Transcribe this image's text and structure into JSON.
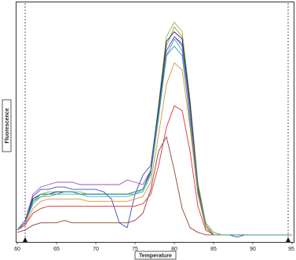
{
  "chart_data": {
    "type": "line",
    "x_label": "Temperature",
    "y_label": "Fluorescence",
    "xlim": [
      60,
      95
    ],
    "ylim": [
      0,
      100
    ],
    "xticks": [
      60,
      65,
      70,
      75,
      80,
      85,
      90,
      95
    ],
    "markers": [
      61,
      94.5
    ],
    "x": [
      60,
      61,
      62,
      63,
      64,
      65,
      66,
      67,
      68,
      69,
      70,
      71,
      72,
      73,
      74,
      75,
      76,
      77,
      78,
      79,
      80,
      81,
      82,
      83,
      84,
      85,
      86,
      87,
      88,
      89,
      90,
      91,
      92,
      93,
      94,
      95
    ],
    "series": [
      {
        "color": "#7cc444",
        "values": [
          5,
          8,
          18,
          20,
          21,
          21,
          21,
          21,
          21,
          20,
          20,
          20,
          20,
          20,
          20,
          21,
          22,
          30,
          58,
          86,
          92,
          88,
          60,
          25,
          8,
          4,
          3,
          3,
          3,
          3,
          3,
          3,
          3,
          3,
          3,
          3
        ]
      },
      {
        "color": "#a0a040",
        "values": [
          5,
          8,
          17,
          19,
          20,
          20,
          21,
          21,
          20,
          20,
          20,
          20,
          20,
          20,
          20,
          20,
          22,
          29,
          55,
          82,
          90,
          86,
          58,
          24,
          8,
          4,
          3,
          3,
          3,
          3,
          3,
          3,
          3,
          3,
          3,
          3
        ]
      },
      {
        "color": "#3050c0",
        "values": [
          5,
          9,
          19,
          22,
          22,
          23,
          23,
          22,
          22,
          22,
          22,
          21,
          18,
          8,
          6,
          20,
          28,
          32,
          56,
          80,
          86,
          83,
          56,
          22,
          7,
          3,
          3,
          3,
          2,
          3,
          3,
          3,
          3,
          3,
          3,
          3
        ]
      },
      {
        "color": "#202060",
        "values": [
          5,
          8,
          18,
          20,
          20,
          21,
          21,
          21,
          20,
          20,
          20,
          20,
          20,
          20,
          20,
          21,
          22,
          30,
          56,
          84,
          88,
          85,
          58,
          23,
          7,
          3,
          3,
          3,
          3,
          3,
          3,
          3,
          3,
          3,
          3,
          3
        ]
      },
      {
        "color": "#30b0d0",
        "values": [
          5,
          8,
          16,
          19,
          19,
          20,
          20,
          20,
          20,
          19,
          19,
          19,
          19,
          19,
          19,
          20,
          21,
          28,
          52,
          78,
          85,
          80,
          50,
          20,
          6,
          3,
          3,
          3,
          3,
          3,
          3,
          3,
          3,
          3,
          3,
          3
        ]
      },
      {
        "color": "#a050c0",
        "values": [
          5,
          9,
          20,
          23,
          24,
          25,
          25,
          25,
          24,
          24,
          24,
          24,
          24,
          24,
          26,
          25,
          24,
          30,
          54,
          80,
          86,
          82,
          55,
          22,
          7,
          3,
          3,
          3,
          3,
          3,
          3,
          3,
          3,
          3,
          3,
          3
        ]
      },
      {
        "color": "#e09030",
        "values": [
          5,
          7,
          14,
          17,
          18,
          18,
          18,
          18,
          18,
          17,
          17,
          17,
          17,
          17,
          17,
          18,
          19,
          25,
          45,
          66,
          75,
          72,
          48,
          20,
          6,
          3,
          3,
          3,
          3,
          3,
          3,
          3,
          3,
          3,
          3,
          3
        ]
      },
      {
        "color": "#e03030",
        "values": [
          5,
          7,
          12,
          14,
          15,
          15,
          15,
          15,
          15,
          15,
          15,
          15,
          15,
          15,
          15,
          15,
          16,
          20,
          32,
          48,
          57,
          55,
          38,
          15,
          5,
          3,
          3,
          3,
          3,
          3,
          3,
          3,
          3,
          3,
          3,
          3
        ]
      },
      {
        "color": "#904030",
        "values": [
          4,
          5,
          7,
          8,
          8,
          8,
          9,
          8,
          8,
          8,
          8,
          8,
          8,
          8,
          8,
          9,
          12,
          22,
          38,
          44,
          30,
          14,
          6,
          4,
          3,
          3,
          3,
          3,
          3,
          3,
          3,
          3,
          3,
          3,
          3,
          3
        ]
      },
      {
        "color": "#30a090",
        "values": [
          5,
          8,
          17,
          20,
          20,
          20,
          21,
          21,
          20,
          20,
          20,
          20,
          20,
          20,
          20,
          21,
          22,
          29,
          53,
          78,
          82,
          78,
          52,
          21,
          7,
          3,
          3,
          3,
          3,
          3,
          3,
          3,
          3,
          3,
          3,
          3
        ]
      }
    ]
  }
}
